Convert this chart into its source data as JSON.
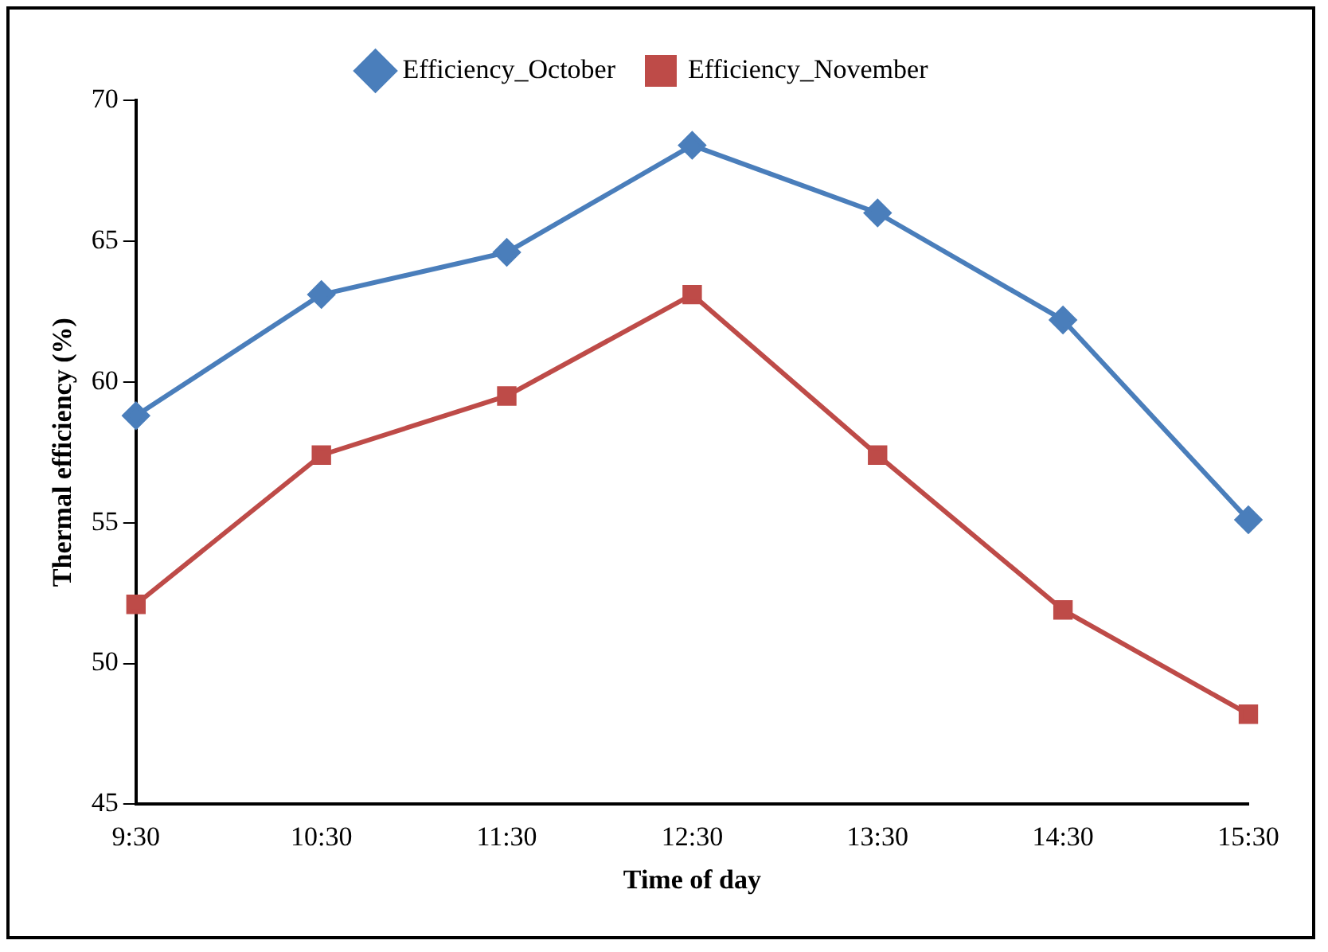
{
  "chart_data": {
    "type": "line",
    "xlabel": "Time of day",
    "ylabel": "Thermal efficiency (%)",
    "categories": [
      "9:30",
      "10:30",
      "11:30",
      "12:30",
      "13:30",
      "14:30",
      "15:30"
    ],
    "series": [
      {
        "name": "Efficiency_October",
        "color": "#4a7ebb",
        "marker": "diamond",
        "values": [
          58.8,
          63.1,
          64.6,
          68.4,
          66.0,
          62.2,
          55.1
        ]
      },
      {
        "name": "Efficiency_November",
        "color": "#be4b48",
        "marker": "square",
        "values": [
          52.1,
          57.4,
          59.5,
          63.1,
          57.4,
          51.9,
          48.2
        ]
      }
    ],
    "ylim": [
      45,
      70
    ],
    "yticks": [
      45,
      50,
      55,
      60,
      65,
      70
    ],
    "grid": false,
    "legend": "top",
    "line_style": "solid"
  }
}
